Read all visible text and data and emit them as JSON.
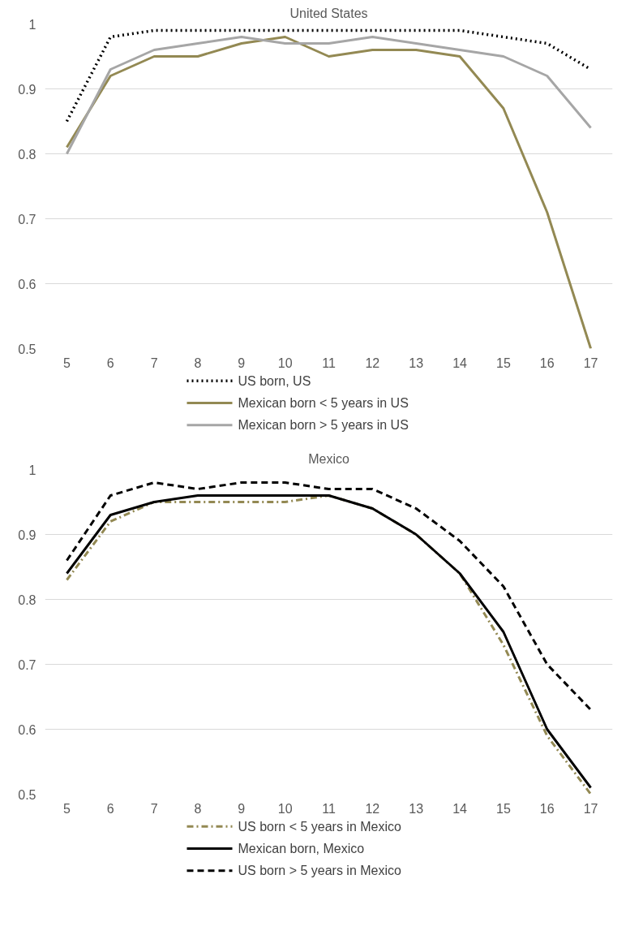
{
  "chart_data": [
    {
      "type": "line",
      "title": "United States",
      "categories": [
        "5",
        "6",
        "7",
        "8",
        "9",
        "10",
        "11",
        "12",
        "13",
        "14",
        "15",
        "16",
        "17"
      ],
      "ylim": [
        0.5,
        1.0
      ],
      "yticks": [
        0.5,
        0.6,
        0.7,
        0.8,
        0.9,
        1
      ],
      "grid": "y",
      "legend": "bottom",
      "marker": "none",
      "series": [
        {
          "name": "US born, US",
          "color": "#000000",
          "line_style": "dotted",
          "values": [
            0.85,
            0.98,
            0.99,
            0.99,
            0.99,
            0.99,
            0.99,
            0.99,
            0.99,
            0.99,
            0.98,
            0.97,
            0.93
          ]
        },
        {
          "name": "Mexican born < 5 years in US",
          "color": "#938953",
          "line_style": "solid",
          "values": [
            0.81,
            0.92,
            0.95,
            0.95,
            0.97,
            0.98,
            0.95,
            0.96,
            0.96,
            0.95,
            0.87,
            0.71,
            0.5
          ]
        },
        {
          "name": "Mexican born > 5 years in US",
          "color": "#a6a6a6",
          "line_style": "solid",
          "values": [
            0.8,
            0.93,
            0.96,
            0.97,
            0.98,
            0.97,
            0.97,
            0.98,
            0.97,
            0.96,
            0.95,
            0.92,
            0.84
          ]
        }
      ]
    },
    {
      "type": "line",
      "title": "Mexico",
      "categories": [
        "5",
        "6",
        "7",
        "8",
        "9",
        "10",
        "11",
        "12",
        "13",
        "14",
        "15",
        "16",
        "17"
      ],
      "ylim": [
        0.5,
        1.0
      ],
      "yticks": [
        0.5,
        0.6,
        0.7,
        0.8,
        0.9,
        1
      ],
      "grid": "y",
      "legend": "bottom",
      "marker": "none",
      "series": [
        {
          "name": "US born < 5 years in Mexico",
          "color": "#938953",
          "line_style": "dashdot",
          "values": [
            0.83,
            0.92,
            0.95,
            0.95,
            0.95,
            0.95,
            0.96,
            0.94,
            0.9,
            0.84,
            0.73,
            0.59,
            0.5
          ]
        },
        {
          "name": "Mexican born, Mexico",
          "color": "#000000",
          "line_style": "solid",
          "values": [
            0.84,
            0.93,
            0.95,
            0.96,
            0.96,
            0.96,
            0.96,
            0.94,
            0.9,
            0.84,
            0.75,
            0.6,
            0.51
          ]
        },
        {
          "name": "US born > 5 years in Mexico",
          "color": "#000000",
          "line_style": "dashed",
          "values": [
            0.86,
            0.96,
            0.98,
            0.97,
            0.98,
            0.98,
            0.97,
            0.97,
            0.94,
            0.89,
            0.82,
            0.7,
            0.63
          ]
        }
      ]
    }
  ]
}
